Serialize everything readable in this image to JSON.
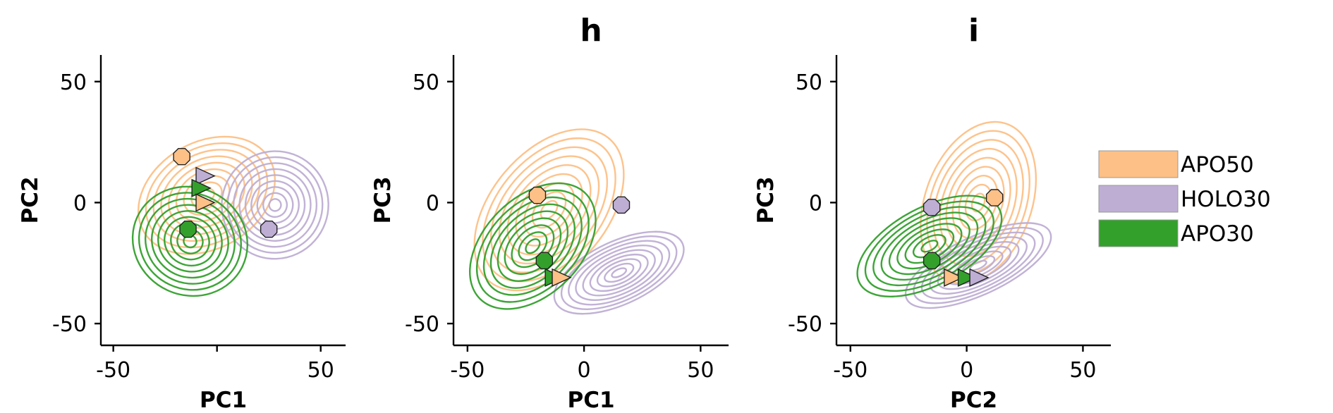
{
  "colors": {
    "APO50": "#fdc086",
    "HOLO30": "#beaed4",
    "APO30": "#33a02c"
  },
  "chart_data": [
    {
      "type": "scatter",
      "title": "",
      "xlabel": "PC1",
      "ylabel": "PC2",
      "xlim": [
        -56,
        62
      ],
      "ylim": [
        -59,
        61
      ],
      "xticks": [
        -50,
        50
      ],
      "xtick_labels": [
        "-50",
        "50"
      ],
      "minor_xticks": [
        0
      ],
      "yticks": [
        50,
        0,
        -50
      ],
      "ytick_labels": [
        "50",
        "0",
        "-50"
      ],
      "density": [
        {
          "series": "APO50",
          "cx": -5,
          "cy": 3,
          "rx": 35,
          "ry": 22,
          "angle": -30
        },
        {
          "series": "HOLO30",
          "cx": 28,
          "cy": -1,
          "rx": 26,
          "ry": 22,
          "angle": -70
        },
        {
          "series": "APO30",
          "cx": -13,
          "cy": -16,
          "rx": 26,
          "ry": 24,
          "angle": -65
        }
      ],
      "markers": [
        {
          "series": "APO50",
          "shape": "octagon",
          "x": -17,
          "y": 19
        },
        {
          "series": "HOLO30",
          "shape": "octagon",
          "x": 25,
          "y": -11
        },
        {
          "series": "APO30",
          "shape": "octagon",
          "x": -14,
          "y": -11
        },
        {
          "series": "HOLO30",
          "shape": "triangle",
          "x": -6,
          "y": 11
        },
        {
          "series": "APO30",
          "shape": "triangle",
          "x": -8,
          "y": 6
        },
        {
          "series": "APO50",
          "shape": "triangle",
          "x": -6,
          "y": 0
        }
      ]
    },
    {
      "type": "scatter",
      "title": "h",
      "xlabel": "PC1",
      "ylabel": "PC3",
      "xlim": [
        -56,
        62
      ],
      "ylim": [
        -59,
        61
      ],
      "xticks": [
        -50,
        0,
        50
      ],
      "xtick_labels": [
        "-50",
        "0",
        "50"
      ],
      "minor_xticks": [],
      "yticks": [
        50,
        0,
        -50
      ],
      "ytick_labels": [
        "50",
        "0",
        "-50"
      ],
      "density": [
        {
          "series": "APO50",
          "cx": -15,
          "cy": -3,
          "rx": 40,
          "ry": 24,
          "angle": -50
        },
        {
          "series": "HOLO30",
          "cx": 15,
          "cy": -29,
          "rx": 30,
          "ry": 13,
          "angle": -25
        },
        {
          "series": "APO30",
          "cx": -22,
          "cy": -18,
          "rx": 32,
          "ry": 20,
          "angle": -45
        }
      ],
      "markers": [
        {
          "series": "APO50",
          "shape": "octagon",
          "x": -20,
          "y": 3
        },
        {
          "series": "HOLO30",
          "shape": "octagon",
          "x": 16,
          "y": -1
        },
        {
          "series": "APO30",
          "shape": "octagon",
          "x": -17,
          "y": -24
        },
        {
          "series": "APO30",
          "shape": "triangle",
          "x": -13,
          "y": -31
        },
        {
          "series": "APO50",
          "shape": "triangle",
          "x": -10,
          "y": -31
        }
      ]
    },
    {
      "type": "scatter",
      "title": "i",
      "xlabel": "PC2",
      "ylabel": "PC3",
      "xlim": [
        -56,
        62
      ],
      "ylim": [
        -59,
        61
      ],
      "xticks": [
        -50,
        0,
        50
      ],
      "xtick_labels": [
        "-50",
        "0",
        "50"
      ],
      "minor_xticks": [],
      "yticks": [
        50,
        0,
        -50
      ],
      "ytick_labels": [
        "50",
        "0",
        "-50"
      ],
      "density": [
        {
          "series": "APO50",
          "cx": 5,
          "cy": 0,
          "rx": 36,
          "ry": 22,
          "angle": -70
        },
        {
          "series": "HOLO30",
          "cx": 5,
          "cy": -26,
          "rx": 34,
          "ry": 12,
          "angle": -25
        },
        {
          "series": "APO30",
          "cx": -16,
          "cy": -18,
          "rx": 34,
          "ry": 16,
          "angle": -28
        }
      ],
      "markers": [
        {
          "series": "HOLO30",
          "shape": "octagon",
          "x": -15,
          "y": -2
        },
        {
          "series": "APO50",
          "shape": "octagon",
          "x": 12,
          "y": 2
        },
        {
          "series": "APO30",
          "shape": "octagon",
          "x": -15,
          "y": -24
        },
        {
          "series": "APO50",
          "shape": "triangle",
          "x": -6,
          "y": -31
        },
        {
          "series": "APO30",
          "shape": "triangle",
          "x": 0,
          "y": -31
        },
        {
          "series": "HOLO30",
          "shape": "triangle",
          "x": 5,
          "y": -31
        }
      ]
    }
  ],
  "legend": {
    "placement": "right",
    "items": [
      {
        "label": "APO50",
        "series": "APO50"
      },
      {
        "label": "HOLO30",
        "series": "HOLO30"
      },
      {
        "label": "APO30",
        "series": "APO30"
      }
    ]
  }
}
